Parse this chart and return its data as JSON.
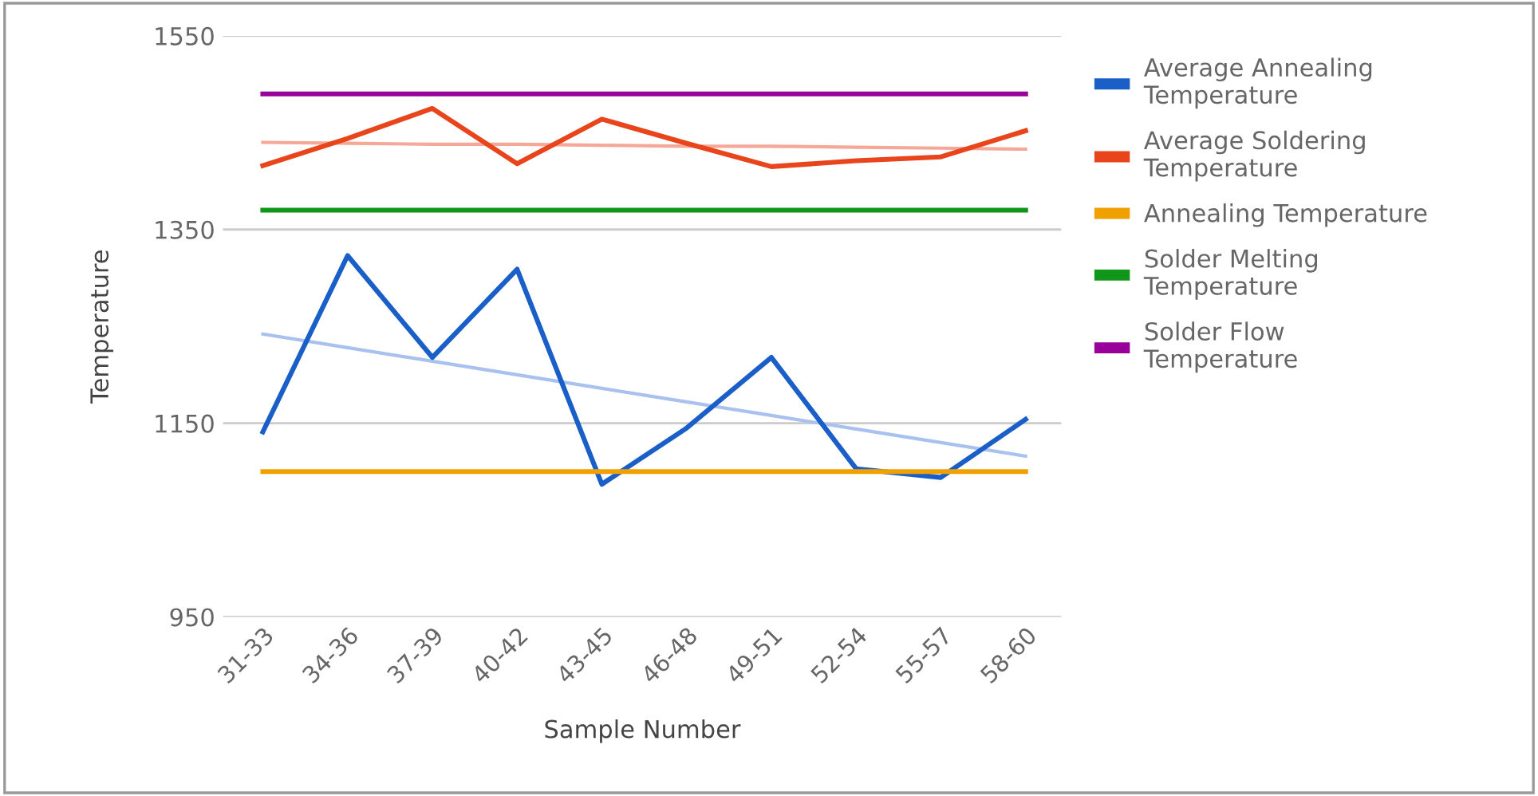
{
  "chart_data": {
    "type": "line",
    "xlabel": "Sample Number",
    "ylabel": "Temperature",
    "categories": [
      "31-33",
      "34-36",
      "37-39",
      "40-42",
      "43-45",
      "46-48",
      "49-51",
      "52-54",
      "55-57",
      "58-60"
    ],
    "series": [
      {
        "name": "Average Annealing Temperature",
        "color": "#1a5fc8",
        "values": [
          1141,
          1323,
          1218,
          1309,
          1087,
          1145,
          1218,
          1103,
          1094,
          1154
        ]
      },
      {
        "name": "Average Soldering Temperature",
        "color": "#e8451c",
        "values": [
          1416,
          1444,
          1475,
          1418,
          1464,
          1439,
          1415,
          1421,
          1425,
          1452
        ]
      },
      {
        "name": "Annealing Temperature",
        "color": "#f0a000",
        "values": [
          1100,
          1100,
          1100,
          1100,
          1100,
          1100,
          1100,
          1100,
          1100,
          1100
        ]
      },
      {
        "name": "Solder Melting Temperature",
        "color": "#109618",
        "values": [
          1370,
          1370,
          1370,
          1370,
          1370,
          1370,
          1370,
          1370,
          1370,
          1370
        ]
      },
      {
        "name": "Solder Flow Temperature",
        "color": "#990099",
        "values": [
          1490,
          1490,
          1490,
          1490,
          1490,
          1490,
          1490,
          1490,
          1490,
          1490
        ]
      },
      {
        "type": "line",
        "color": "#a9c1ee",
        "values": [
          1242,
          1228,
          1214,
          1200,
          1186,
          1172,
          1158,
          1144,
          1130,
          1116
        ]
      },
      {
        "type": "line",
        "color": "#f6a898",
        "values": [
          1440,
          1439,
          1438,
          1438,
          1437,
          1436,
          1436,
          1435,
          1434,
          1433
        ]
      }
    ],
    "ylim": [
      950,
      1550
    ],
    "yticks": [
      950,
      1150,
      1350,
      1550
    ],
    "grid": "y",
    "legend": "right",
    "marker": "none",
    "line_style": "solid"
  }
}
